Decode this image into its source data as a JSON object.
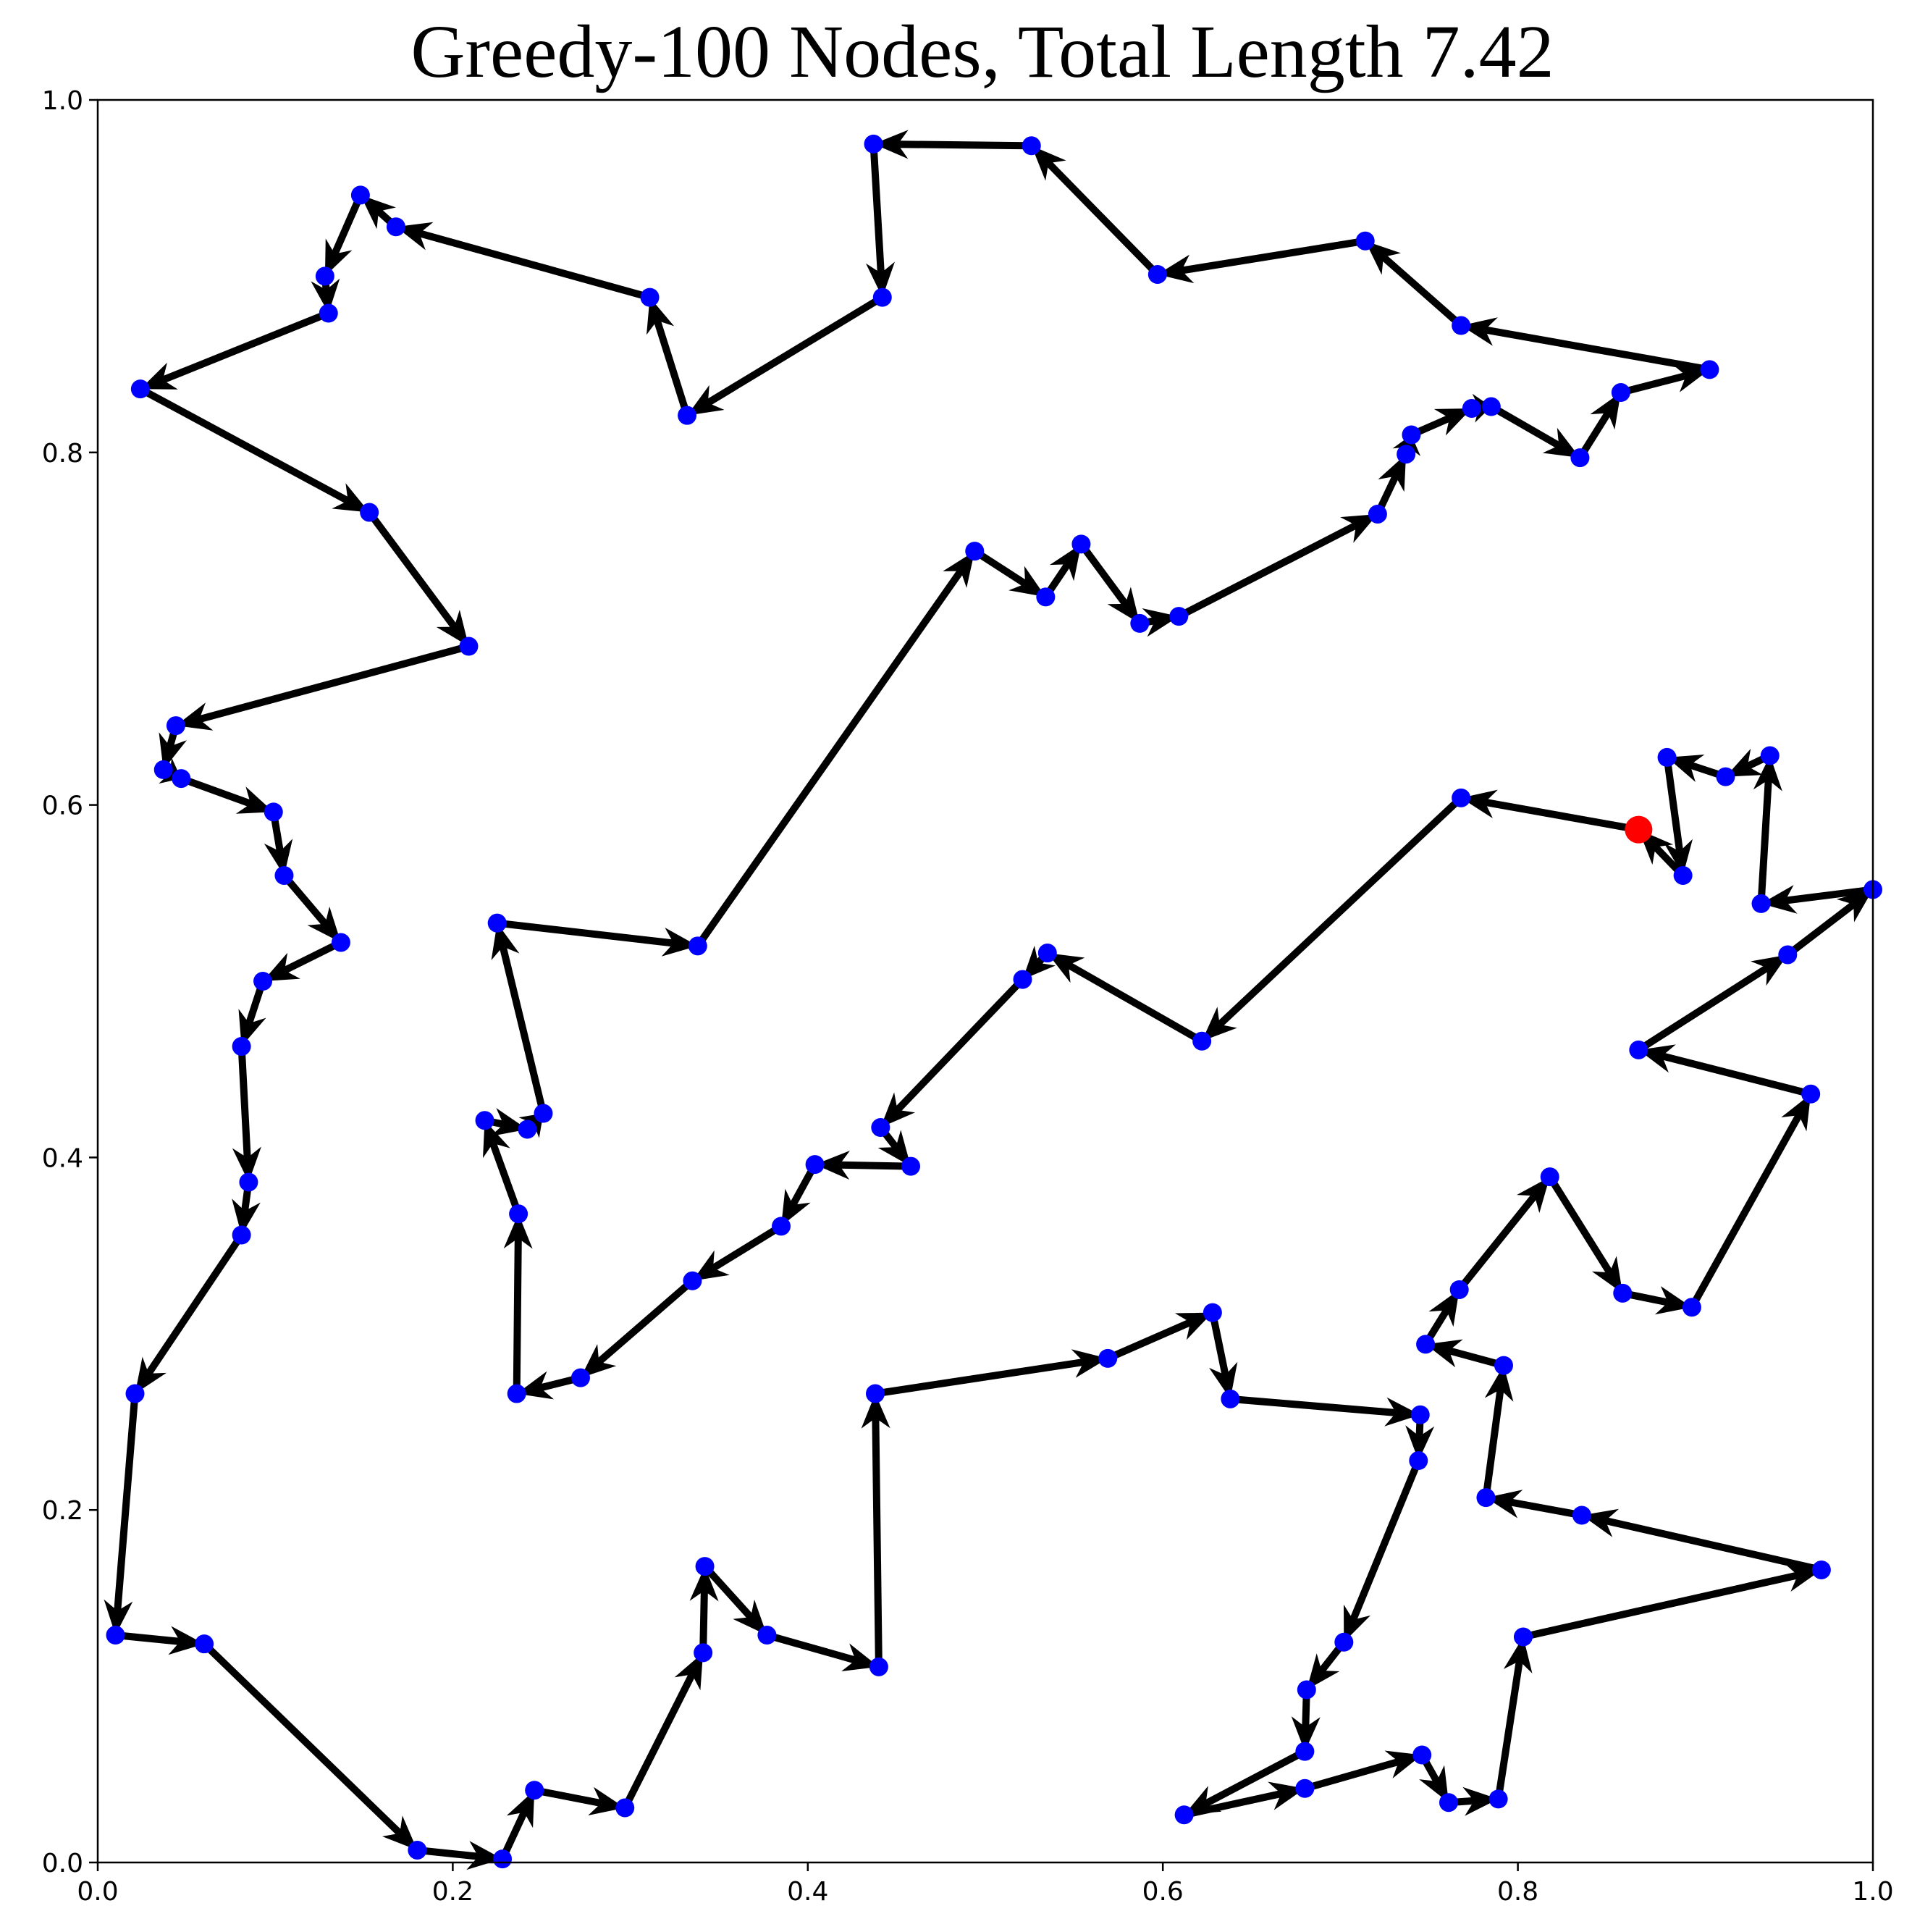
{
  "chart_data": {
    "type": "line",
    "title": "Greedy-100 Nodes, Total Length 7.42",
    "xlabel": "",
    "ylabel": "",
    "xlim": [
      0.0,
      1.0
    ],
    "ylim": [
      0.0,
      1.0
    ],
    "grid": false,
    "x_ticks": [
      "0.0",
      "0.2",
      "0.4",
      "0.6",
      "0.8",
      "1.0"
    ],
    "y_ticks": [
      "0.0",
      "0.2",
      "0.4",
      "0.6",
      "0.8",
      "1.0"
    ],
    "colors": {
      "node": "#0000ff",
      "start_node": "#ff0000",
      "edge": "#000000"
    },
    "start": [
      0.868,
      0.586
    ],
    "tour": [
      [
        0.868,
        0.586
      ],
      [
        0.768,
        0.604
      ],
      [
        0.622,
        0.466
      ],
      [
        0.535,
        0.516
      ],
      [
        0.521,
        0.501
      ],
      [
        0.441,
        0.417
      ],
      [
        0.458,
        0.395
      ],
      [
        0.404,
        0.396
      ],
      [
        0.385,
        0.361
      ],
      [
        0.335,
        0.33
      ],
      [
        0.272,
        0.275
      ],
      [
        0.236,
        0.266
      ],
      [
        0.237,
        0.368
      ],
      [
        0.218,
        0.421
      ],
      [
        0.242,
        0.416
      ],
      [
        0.251,
        0.425
      ],
      [
        0.225,
        0.533
      ],
      [
        0.338,
        0.52
      ],
      [
        0.494,
        0.744
      ],
      [
        0.534,
        0.718
      ],
      [
        0.554,
        0.748
      ],
      [
        0.587,
        0.703
      ],
      [
        0.609,
        0.707
      ],
      [
        0.721,
        0.765
      ],
      [
        0.737,
        0.799
      ],
      [
        0.74,
        0.81
      ],
      [
        0.774,
        0.825
      ],
      [
        0.785,
        0.826
      ],
      [
        0.835,
        0.797
      ],
      [
        0.858,
        0.834
      ],
      [
        0.908,
        0.847
      ],
      [
        0.768,
        0.872
      ],
      [
        0.714,
        0.92
      ],
      [
        0.597,
        0.901
      ],
      [
        0.526,
        0.974
      ],
      [
        0.437,
        0.975
      ],
      [
        0.442,
        0.888
      ],
      [
        0.332,
        0.821
      ],
      [
        0.311,
        0.888
      ],
      [
        0.168,
        0.928
      ],
      [
        0.148,
        0.946
      ],
      [
        0.128,
        0.9
      ],
      [
        0.13,
        0.879
      ],
      [
        0.024,
        0.836
      ],
      [
        0.153,
        0.766
      ],
      [
        0.209,
        0.69
      ],
      [
        0.044,
        0.645
      ],
      [
        0.037,
        0.62
      ],
      [
        0.047,
        0.615
      ],
      [
        0.099,
        0.596
      ],
      [
        0.105,
        0.56
      ],
      [
        0.137,
        0.522
      ],
      [
        0.093,
        0.5
      ],
      [
        0.081,
        0.463
      ],
      [
        0.085,
        0.386
      ],
      [
        0.081,
        0.356
      ],
      [
        0.021,
        0.266
      ],
      [
        0.01,
        0.129
      ],
      [
        0.06,
        0.124
      ],
      [
        0.18,
        0.007
      ],
      [
        0.228,
        0.002
      ],
      [
        0.246,
        0.041
      ],
      [
        0.297,
        0.031
      ],
      [
        0.341,
        0.119
      ],
      [
        0.342,
        0.168
      ],
      [
        0.377,
        0.129
      ],
      [
        0.44,
        0.111
      ],
      [
        0.438,
        0.266
      ],
      [
        0.569,
        0.286
      ],
      [
        0.628,
        0.312
      ],
      [
        0.638,
        0.263
      ],
      [
        0.745,
        0.254
      ],
      [
        0.744,
        0.228
      ],
      [
        0.702,
        0.125
      ],
      [
        0.681,
        0.098
      ],
      [
        0.68,
        0.063
      ],
      [
        0.612,
        0.027
      ],
      [
        0.68,
        0.042
      ],
      [
        0.746,
        0.061
      ],
      [
        0.761,
        0.034
      ],
      [
        0.789,
        0.036
      ],
      [
        0.803,
        0.128
      ],
      [
        0.971,
        0.166
      ],
      [
        0.836,
        0.197
      ],
      [
        0.782,
        0.207
      ],
      [
        0.792,
        0.282
      ],
      [
        0.748,
        0.294
      ],
      [
        0.767,
        0.325
      ],
      [
        0.818,
        0.389
      ],
      [
        0.859,
        0.323
      ],
      [
        0.898,
        0.315
      ],
      [
        0.965,
        0.436
      ],
      [
        0.868,
        0.461
      ],
      [
        0.952,
        0.515
      ],
      [
        1.0,
        0.552
      ],
      [
        0.937,
        0.544
      ],
      [
        0.942,
        0.628
      ],
      [
        0.917,
        0.616
      ],
      [
        0.884,
        0.627
      ],
      [
        0.893,
        0.56
      ],
      [
        0.868,
        0.586
      ]
    ]
  }
}
